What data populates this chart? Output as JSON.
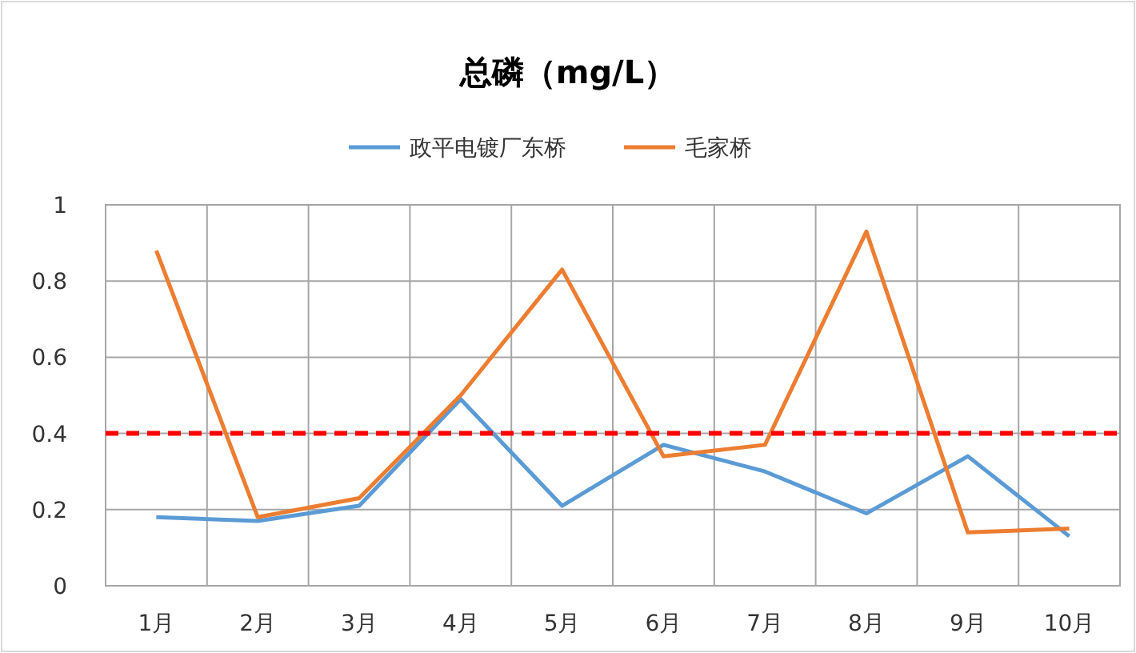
{
  "chart_data": {
    "type": "line",
    "title": "总磷（mg/L）",
    "categories": [
      "1月",
      "2月",
      "3月",
      "4月",
      "5月",
      "6月",
      "7月",
      "8月",
      "9月",
      "10月"
    ],
    "series": [
      {
        "name": "政平电镀厂东桥",
        "color": "#5b9bd5",
        "values": [
          0.18,
          0.17,
          0.21,
          0.49,
          0.21,
          0.37,
          0.3,
          0.19,
          0.34,
          0.13
        ]
      },
      {
        "name": "毛家桥",
        "color": "#ed7d31",
        "values": [
          0.88,
          0.18,
          0.23,
          0.5,
          0.83,
          0.34,
          0.37,
          0.93,
          0.14,
          0.15
        ]
      }
    ],
    "ylim": [
      0,
      1
    ],
    "yticks": [
      0,
      0.2,
      0.4,
      0.6,
      0.8,
      1
    ],
    "grid": true,
    "legend": "top",
    "marker": "none",
    "line_style": "solid",
    "ref_lines": [
      {
        "axis": "y",
        "value": 0.4,
        "color": "#ff0000",
        "line_style": "dashed"
      }
    ]
  }
}
